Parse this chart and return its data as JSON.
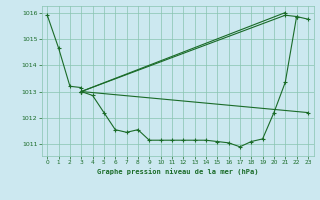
{
  "title": "Graphe pression niveau de la mer (hPa)",
  "bg_color": "#cce8f0",
  "grid_color": "#88c4b0",
  "line_color": "#1a6b28",
  "text_color": "#1a6b28",
  "xlim": [
    -0.5,
    23.5
  ],
  "ylim": [
    1010.55,
    1016.25
  ],
  "yticks": [
    1011,
    1012,
    1013,
    1014,
    1015,
    1016
  ],
  "xticks": [
    0,
    1,
    2,
    3,
    4,
    5,
    6,
    7,
    8,
    9,
    10,
    11,
    12,
    13,
    14,
    15,
    16,
    17,
    18,
    19,
    20,
    21,
    22,
    23
  ],
  "series": [
    {
      "x": [
        0,
        1,
        2,
        3
      ],
      "y": [
        1015.9,
        1014.65,
        1013.2,
        1013.15
      ],
      "marker": true
    },
    {
      "x": [
        3,
        4,
        5,
        6,
        7,
        8,
        9,
        10,
        11,
        12,
        13,
        14,
        15,
        16,
        17,
        18,
        19,
        20,
        21,
        22,
        23
      ],
      "y": [
        1013.0,
        1012.85,
        1012.2,
        1011.55,
        1011.45,
        1011.55,
        1011.15,
        1011.15,
        1011.15,
        1011.15,
        1011.15,
        1011.15,
        1011.1,
        1011.05,
        1010.9,
        1011.1,
        1011.2,
        1012.2,
        1013.35,
        1015.85,
        1015.75
      ],
      "marker": true
    },
    {
      "x": [
        3,
        21,
        22
      ],
      "y": [
        1013.0,
        1015.9,
        1015.85
      ],
      "marker": true
    },
    {
      "x": [
        3,
        21
      ],
      "y": [
        1013.0,
        1016.0
      ],
      "marker": true
    },
    {
      "x": [
        3,
        23
      ],
      "y": [
        1013.0,
        1012.2
      ],
      "marker": true
    }
  ]
}
